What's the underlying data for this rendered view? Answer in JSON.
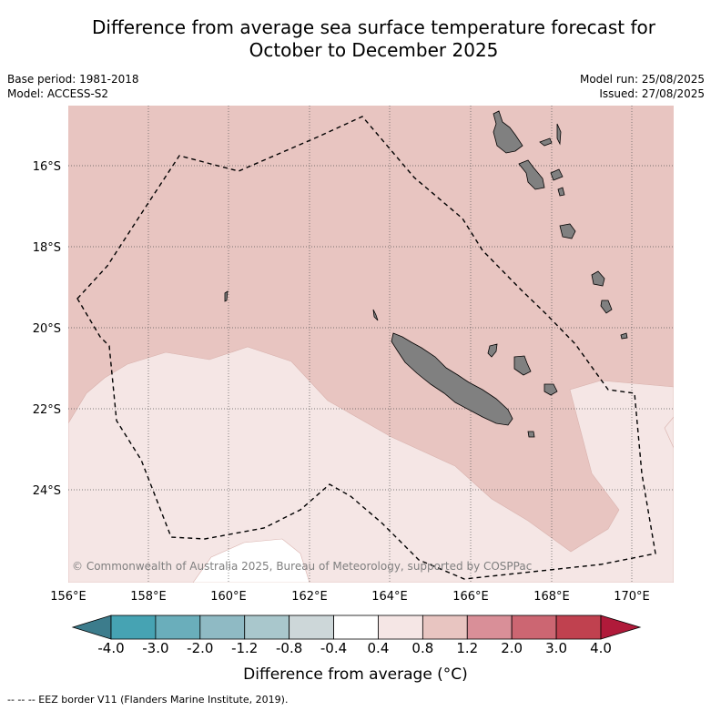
{
  "header": {
    "title_line1": "Difference from average sea surface temperature forecast for",
    "title_line2": "October to December 2025",
    "base_period": "Base period: 1981-2018",
    "model": "Model: ACCESS-S2",
    "model_run": "Model run: 25/08/2025",
    "issued": "Issued: 27/08/2025"
  },
  "map": {
    "lat_labels": [
      "16°S",
      "18°S",
      "20°S",
      "22°S",
      "24°S"
    ],
    "lon_labels": [
      "156°E",
      "158°E",
      "160°E",
      "162°E",
      "164°E",
      "166°E",
      "168°E",
      "170°E"
    ],
    "copyright": "© Commonwealth of Australia 2025, Bureau of Meteorology, supported by COSPPac",
    "colors": {
      "anomaly_0_4_to_0_8": "#f5e6e5",
      "anomaly_0_8_to_1_2": "#e8c5c1",
      "land": "#808080",
      "grid": "#555555"
    }
  },
  "colorbar": {
    "labels": [
      "-4.0",
      "-3.0",
      "-2.0",
      "-1.2",
      "-0.8",
      "-0.4",
      "0.4",
      "0.8",
      "1.2",
      "2.0",
      "3.0",
      "4.0"
    ],
    "colors": [
      "#3c7c8c",
      "#46a3b3",
      "#6aaebb",
      "#8fbac4",
      "#a9c7cc",
      "#cdd7d9",
      "#ffffff",
      "#f5e6e5",
      "#e8c5c1",
      "#d98f98",
      "#cc6672",
      "#c0414f",
      "#b01a3a"
    ],
    "title": "Difference from average (°C)"
  },
  "footer": {
    "eez_note": "--  --  -- EEZ border V11 (Flanders Marine Institute, 2019)."
  }
}
